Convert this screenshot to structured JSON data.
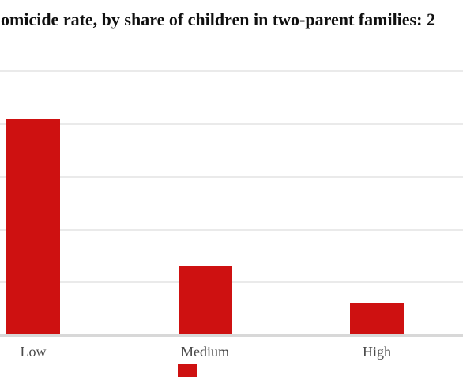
{
  "title": {
    "visible_text": "omicide rate, by share of children in two-parent families: 2"
  },
  "colors": {
    "bar": "#ce1111",
    "gridline": "#eaeaea",
    "axis_line": "#d8d8d8",
    "label_text": "#4a4a4a",
    "title_text": "#101010",
    "background": "#ffffff"
  },
  "x_axis": {
    "labels": [
      "Low",
      "Medium",
      "High"
    ]
  },
  "legend": {
    "swatch_color": "#ce1111"
  },
  "chart_data": {
    "type": "bar",
    "categories": [
      "Low",
      "Medium",
      "High"
    ],
    "values": [
      4.1,
      1.3,
      0.6
    ],
    "title": "omicide rate, by share of children in two-parent families: 2",
    "xlabel": "",
    "ylabel": "",
    "ylim": [
      0,
      5.5
    ],
    "grid": true,
    "gridline_step": 1,
    "legend_position": "bottom",
    "y_tick_labels_visible": false,
    "bar_color": "#ce1111"
  }
}
